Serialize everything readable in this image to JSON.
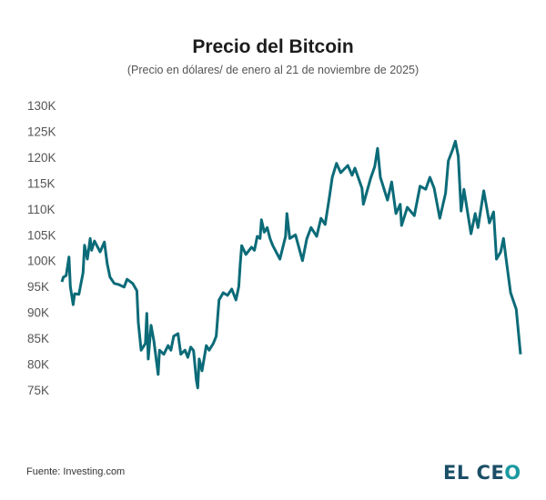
{
  "chart_data": {
    "type": "line",
    "title": "Precio del Bitcoin",
    "subtitle": "(Precio en dólares/ de enero al 21 de noviembre de 2025)",
    "xlabel": "",
    "ylabel": "",
    "ylim": [
      75,
      130
    ],
    "y_unit": "K",
    "yticks": [
      "130K",
      "125K",
      "120K",
      "115K",
      "110K",
      "105K",
      "100K",
      "95K",
      "90K",
      "85K",
      "80K",
      "75K"
    ],
    "ytick_values": [
      130,
      125,
      120,
      115,
      110,
      105,
      100,
      95,
      90,
      85,
      80,
      75
    ],
    "grid": false,
    "legend": "none",
    "line_color": "#0b6b78",
    "series": [
      {
        "x": [
          "2025-01-01",
          "2025-01-02",
          "2025-01-04",
          "2025-01-06",
          "2025-01-07",
          "2025-01-09",
          "2025-01-10",
          "2025-01-13",
          "2025-01-16",
          "2025-01-17",
          "2025-01-19",
          "2025-01-21",
          "2025-01-22",
          "2025-01-24",
          "2025-01-28",
          "2025-01-31",
          "2025-02-02",
          "2025-02-04",
          "2025-02-07",
          "2025-02-10",
          "2025-02-14",
          "2025-02-16",
          "2025-02-20",
          "2025-02-23",
          "2025-02-24",
          "2025-02-26",
          "2025-03-01",
          "2025-03-02",
          "2025-03-03",
          "2025-03-05",
          "2025-03-07",
          "2025-03-10",
          "2025-03-11",
          "2025-03-14",
          "2025-03-17",
          "2025-03-19",
          "2025-03-21",
          "2025-03-24",
          "2025-03-26",
          "2025-03-29",
          "2025-03-31",
          "2025-04-02",
          "2025-04-04",
          "2025-04-06",
          "2025-04-07",
          "2025-04-08",
          "2025-04-10",
          "2025-04-13",
          "2025-04-15",
          "2025-04-18",
          "2025-04-20",
          "2025-04-22",
          "2025-04-25",
          "2025-04-28",
          "2025-05-01",
          "2025-05-04",
          "2025-05-06",
          "2025-05-07",
          "2025-05-08",
          "2025-05-11",
          "2025-05-15",
          "2025-05-17",
          "2025-05-19",
          "2025-05-21",
          "2025-05-22",
          "2025-05-24",
          "2025-05-26",
          "2025-05-28",
          "2025-05-30",
          "2025-06-04",
          "2025-06-08",
          "2025-06-09",
          "2025-06-11",
          "2025-06-15",
          "2025-06-20",
          "2025-06-23",
          "2025-06-26",
          "2025-06-30",
          "2025-07-03",
          "2025-07-06",
          "2025-07-09",
          "2025-07-11",
          "2025-07-14",
          "2025-07-17",
          "2025-07-22",
          "2025-07-25",
          "2025-07-27",
          "2025-08-01",
          "2025-08-02",
          "2025-08-07",
          "2025-08-10",
          "2025-08-12",
          "2025-08-14",
          "2025-08-19",
          "2025-08-22",
          "2025-08-25",
          "2025-08-28",
          "2025-08-29",
          "2025-09-02",
          "2025-09-07",
          "2025-09-11",
          "2025-09-15",
          "2025-09-18",
          "2025-09-21",
          "2025-09-25",
          "2025-09-29",
          "2025-10-01",
          "2025-10-04",
          "2025-10-06",
          "2025-10-08",
          "2025-10-10",
          "2025-10-12",
          "2025-10-17",
          "2025-10-20",
          "2025-10-22",
          "2025-10-26",
          "2025-10-30",
          "2025-11-02",
          "2025-11-04",
          "2025-11-07",
          "2025-11-09",
          "2025-11-11",
          "2025-11-14",
          "2025-11-18",
          "2025-11-21"
        ],
        "values": [
          95.9,
          96.8,
          97.1,
          100.7,
          95.0,
          91.5,
          93.6,
          93.5,
          97.7,
          103.0,
          100.3,
          104.3,
          102.0,
          103.8,
          101.7,
          103.6,
          99.4,
          96.8,
          95.6,
          95.4,
          94.9,
          96.4,
          95.6,
          94.2,
          88.0,
          82.7,
          84.0,
          89.8,
          81.0,
          87.5,
          84.5,
          78.0,
          82.7,
          81.9,
          83.6,
          82.7,
          85.4,
          85.9,
          81.9,
          82.7,
          81.3,
          83.3,
          82.6,
          76.9,
          75.4,
          81.0,
          78.7,
          83.6,
          82.7,
          84.0,
          85.4,
          92.4,
          93.8,
          93.3,
          94.5,
          92.4,
          95.0,
          99.4,
          102.9,
          101.2,
          102.6,
          102.0,
          104.7,
          104.3,
          107.9,
          105.5,
          106.4,
          104.3,
          102.9,
          100.3,
          104.7,
          109.1,
          104.3,
          105.0,
          100.0,
          104.2,
          106.4,
          104.7,
          108.2,
          107.0,
          112.3,
          116.1,
          118.8,
          117.0,
          118.4,
          116.5,
          117.9,
          114.0,
          110.9,
          115.8,
          118.2,
          121.7,
          116.1,
          111.7,
          115.2,
          109.1,
          110.9,
          106.8,
          110.3,
          108.7,
          114.4,
          113.8,
          116.1,
          114.0,
          108.2,
          113.0,
          119.3,
          121.4,
          123.1,
          120.2,
          109.6,
          113.8,
          105.2,
          109.1,
          106.4,
          113.5,
          107.3,
          109.4,
          100.3,
          101.7,
          104.3,
          100.0,
          93.8,
          90.6,
          81.9
        ]
      }
    ]
  },
  "footer": {
    "source": "Fuente: Investing.com",
    "logo_text": "EL CEO"
  }
}
